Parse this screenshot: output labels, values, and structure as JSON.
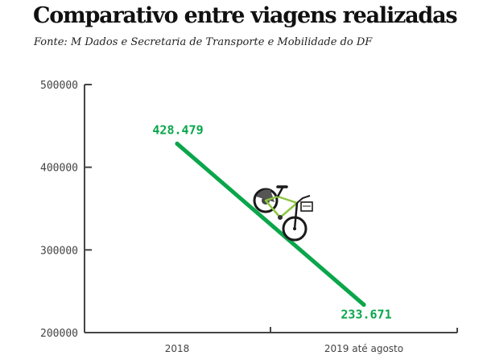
{
  "title": "Comparativo entre viagens realizadas",
  "subtitle": "Fonte: M Dados e Secretaria de Transporte e Mobilidade do DF",
  "colors": {
    "line": "#0aa64b",
    "axis": "#444444",
    "bike_frame": "#8cc63f"
  },
  "icons": {
    "bike": "bicycle-icon"
  },
  "chart_data": {
    "type": "line",
    "categories": [
      "2018",
      "2019 até agosto"
    ],
    "series": [
      {
        "values": [
          428479,
          233671
        ],
        "labels": [
          "428.479",
          "233.671"
        ]
      }
    ],
    "y_ticks": [
      "500000",
      "400000",
      "300000",
      "200000"
    ],
    "ylim": [
      200000,
      500000
    ],
    "grid": false,
    "legend": "none"
  }
}
